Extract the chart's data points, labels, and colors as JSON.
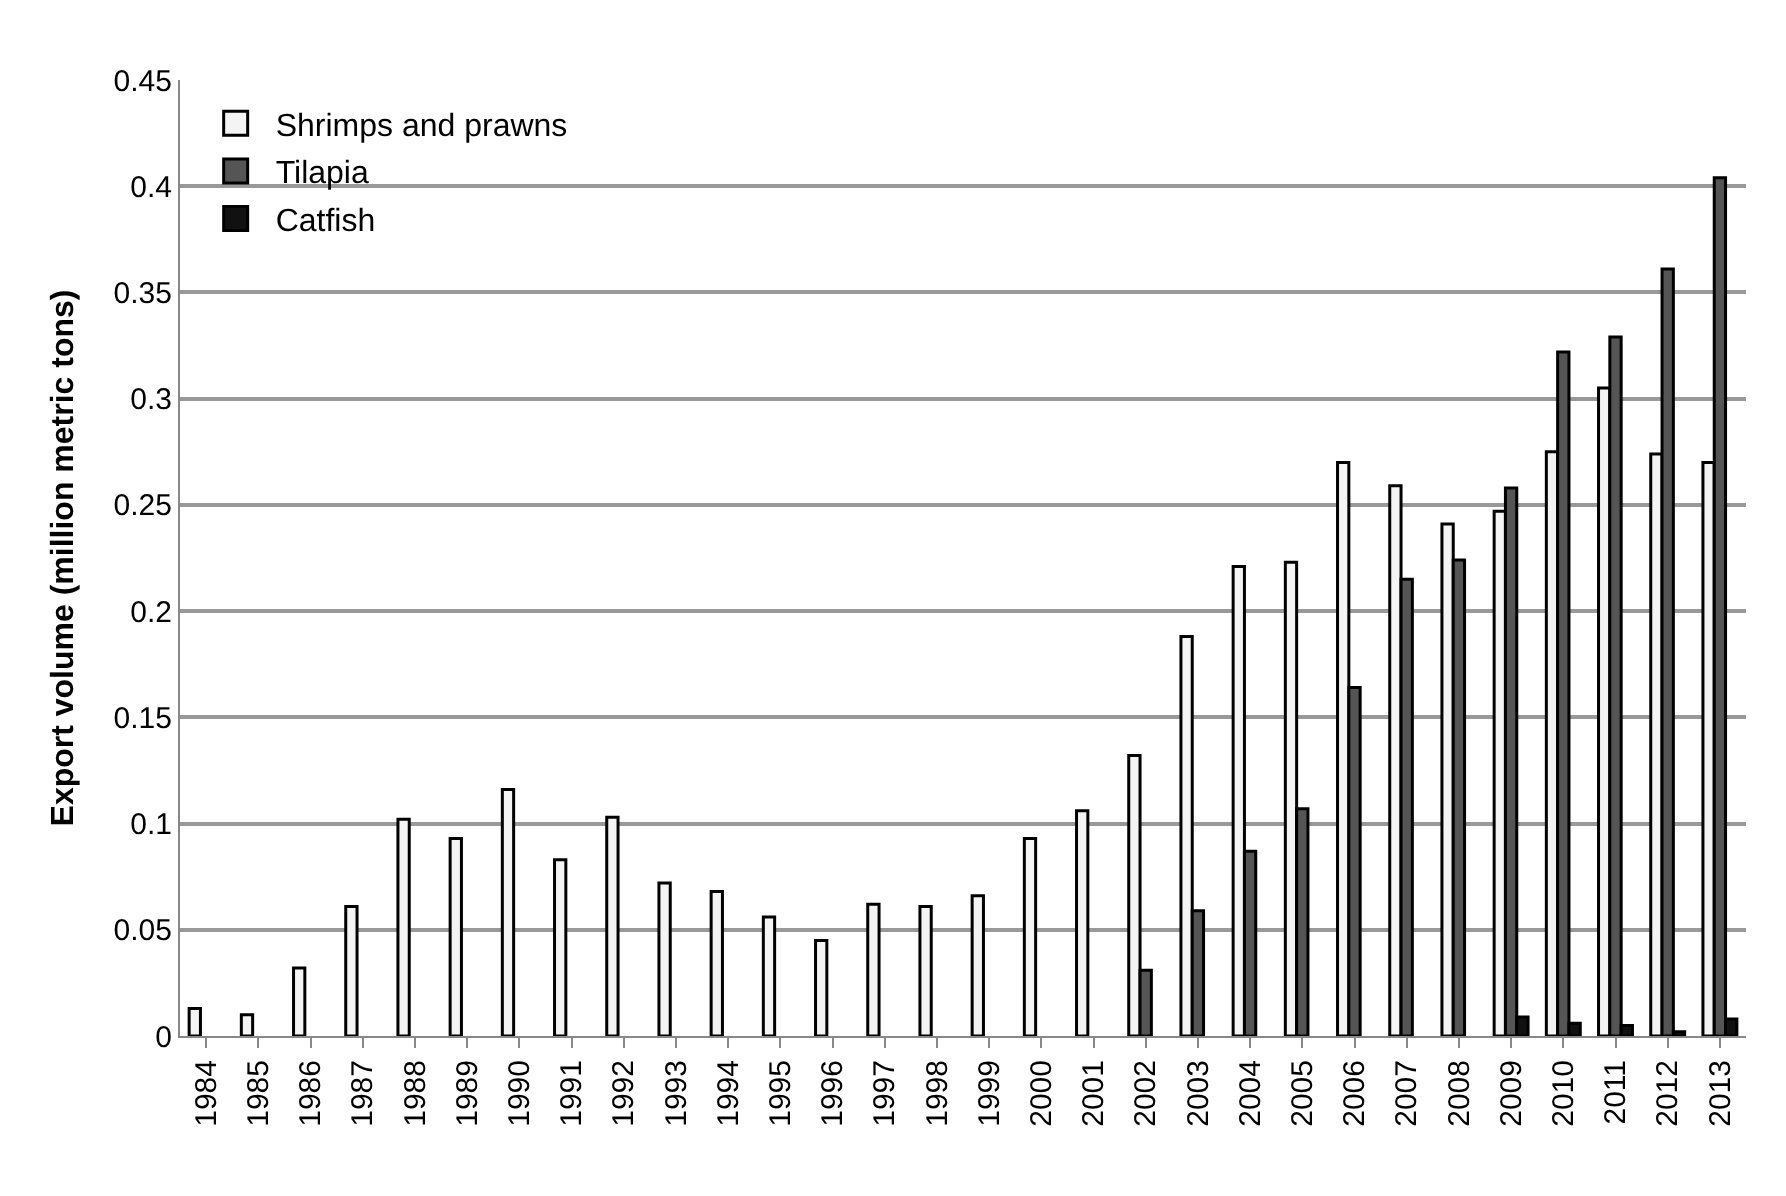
{
  "chart_data": {
    "type": "bar",
    "ylabel": "Export volume (million metric tons)",
    "categories": [
      "1984",
      "1985",
      "1986",
      "1987",
      "1988",
      "1989",
      "1990",
      "1991",
      "1992",
      "1993",
      "1994",
      "1995",
      "1996",
      "1997",
      "1998",
      "1999",
      "2000",
      "2001",
      "2002",
      "2003",
      "2004",
      "2005",
      "2006",
      "2007",
      "2008",
      "2009",
      "2010",
      "2011",
      "2012",
      "2013"
    ],
    "series": [
      {
        "name": "Shrimps and prawns",
        "color": "#f4f4f4",
        "values": [
          0.013,
          0.01,
          0.032,
          0.061,
          0.102,
          0.093,
          0.116,
          0.083,
          0.103,
          0.072,
          0.068,
          0.056,
          0.045,
          0.062,
          0.061,
          0.066,
          0.093,
          0.106,
          0.132,
          0.188,
          0.221,
          0.223,
          0.27,
          0.259,
          0.241,
          0.247,
          0.275,
          0.305,
          0.274,
          0.27
        ]
      },
      {
        "name": "Tilapia",
        "color": "#555555",
        "values": [
          null,
          null,
          null,
          null,
          null,
          null,
          null,
          null,
          null,
          null,
          null,
          null,
          null,
          null,
          null,
          null,
          null,
          null,
          0.031,
          0.059,
          0.087,
          0.107,
          0.164,
          0.215,
          0.224,
          0.258,
          0.322,
          0.329,
          0.361,
          0.404
        ]
      },
      {
        "name": "Catfish",
        "color": "#111111",
        "values": [
          null,
          null,
          null,
          null,
          null,
          null,
          null,
          null,
          null,
          null,
          null,
          null,
          null,
          null,
          null,
          null,
          null,
          null,
          null,
          null,
          null,
          null,
          null,
          null,
          null,
          0.009,
          0.006,
          0.005,
          0.002,
          0.008
        ]
      }
    ],
    "ylim": [
      0,
      0.45
    ],
    "yticks": [
      0,
      0.05,
      0.1,
      0.15,
      0.2,
      0.25,
      0.3,
      0.35,
      0.4,
      0.45
    ],
    "grid": "y",
    "legend": "top left"
  }
}
